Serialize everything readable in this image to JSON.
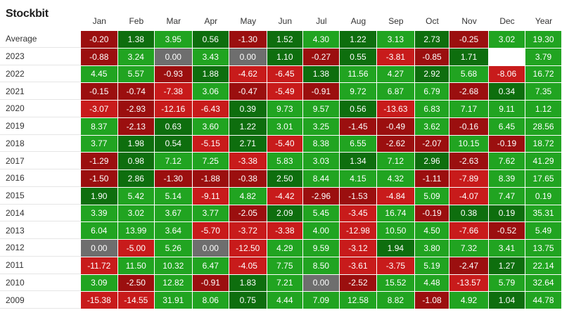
{
  "logo": {
    "text": "Stockbit"
  },
  "colors": {
    "pos_bright": "#21a421",
    "pos_dark": "#0e6e0e",
    "neg_bright": "#c81b1b",
    "neg_dark": "#9b0f0f",
    "zero": "#6e6e6e",
    "empty": "#ffffff"
  },
  "chart_data": {
    "type": "heatmap",
    "columns": [
      "Jan",
      "Feb",
      "Mar",
      "Apr",
      "May",
      "Jun",
      "Jul",
      "Aug",
      "Sep",
      "Oct",
      "Nov",
      "Dec",
      "Year"
    ],
    "rows": [
      {
        "label": "Average",
        "values": [
          "-0.20",
          "1.38",
          "3.95",
          "0.56",
          "-1.30",
          "1.52",
          "4.30",
          "1.22",
          "3.13",
          "2.73",
          "-0.25",
          "3.02",
          "19.30"
        ]
      },
      {
        "label": "2023",
        "values": [
          "-0.88",
          "3.24",
          "0.00",
          "3.43",
          "0.00",
          "1.10",
          "-0.27",
          "0.55",
          "-3.81",
          "-0.85",
          "1.71",
          "",
          "3.79"
        ]
      },
      {
        "label": "2022",
        "values": [
          "4.45",
          "5.57",
          "-0.93",
          "1.88",
          "-4.62",
          "-6.45",
          "1.38",
          "11.56",
          "4.27",
          "2.92",
          "5.68",
          "-8.06",
          "16.72"
        ]
      },
      {
        "label": "2021",
        "values": [
          "-0.15",
          "-0.74",
          "-7.38",
          "3.06",
          "-0.47",
          "-5.49",
          "-0.91",
          "9.72",
          "6.87",
          "6.79",
          "-2.68",
          "0.34",
          "7.35"
        ]
      },
      {
        "label": "2020",
        "values": [
          "-3.07",
          "-2.93",
          "-12.16",
          "-6.43",
          "0.39",
          "9.73",
          "9.57",
          "0.56",
          "-13.63",
          "6.83",
          "7.17",
          "9.11",
          "1.12"
        ]
      },
      {
        "label": "2019",
        "values": [
          "8.37",
          "-2.13",
          "0.63",
          "3.60",
          "1.22",
          "3.01",
          "3.25",
          "-1.45",
          "-0.49",
          "3.62",
          "-0.16",
          "6.45",
          "28.56"
        ]
      },
      {
        "label": "2018",
        "values": [
          "3.77",
          "1.98",
          "0.54",
          "-5.15",
          "2.71",
          "-5.40",
          "8.38",
          "6.55",
          "-2.62",
          "-2.07",
          "10.15",
          "-0.19",
          "18.72"
        ]
      },
      {
        "label": "2017",
        "values": [
          "-1.29",
          "0.98",
          "7.12",
          "7.25",
          "-3.38",
          "5.83",
          "3.03",
          "1.34",
          "7.12",
          "2.96",
          "-2.63",
          "7.62",
          "41.29"
        ]
      },
      {
        "label": "2016",
        "values": [
          "-1.50",
          "2.86",
          "-1.30",
          "-1.88",
          "-0.38",
          "2.50",
          "8.44",
          "4.15",
          "4.32",
          "-1.11",
          "-7.89",
          "8.39",
          "17.65"
        ]
      },
      {
        "label": "2015",
        "values": [
          "1.90",
          "5.42",
          "5.14",
          "-9.11",
          "4.82",
          "-4.42",
          "-2.96",
          "-1.53",
          "-4.84",
          "5.09",
          "-4.07",
          "7.47",
          "0.19"
        ]
      },
      {
        "label": "2014",
        "values": [
          "3.39",
          "3.02",
          "3.67",
          "3.77",
          "-2.05",
          "2.09",
          "5.45",
          "-3.45",
          "16.74",
          "-0.19",
          "0.38",
          "0.19",
          "35.31"
        ]
      },
      {
        "label": "2013",
        "values": [
          "6.04",
          "13.99",
          "3.64",
          "-5.70",
          "-3.72",
          "-3.38",
          "4.00",
          "-12.98",
          "10.50",
          "4.50",
          "-7.66",
          "-0.52",
          "5.49"
        ]
      },
      {
        "label": "2012",
        "values": [
          "0.00",
          "-5.00",
          "5.26",
          "0.00",
          "-12.50",
          "4.29",
          "9.59",
          "-3.12",
          "1.94",
          "3.80",
          "7.32",
          "3.41",
          "13.75"
        ]
      },
      {
        "label": "2011",
        "values": [
          "-11.72",
          "11.50",
          "10.32",
          "6.47",
          "-4.05",
          "7.75",
          "8.50",
          "-3.61",
          "-3.75",
          "5.19",
          "-2.47",
          "1.27",
          "22.14"
        ]
      },
      {
        "label": "2010",
        "values": [
          "3.09",
          "-2.50",
          "12.82",
          "-0.91",
          "1.83",
          "7.21",
          "0.00",
          "-2.52",
          "15.52",
          "4.48",
          "-13.57",
          "5.79",
          "32.64"
        ]
      },
      {
        "label": "2009",
        "values": [
          "-15.38",
          "-14.55",
          "31.91",
          "8.06",
          "0.75",
          "4.44",
          "7.09",
          "12.58",
          "8.82",
          "-1.08",
          "4.92",
          "1.04",
          "44.78"
        ]
      }
    ]
  }
}
